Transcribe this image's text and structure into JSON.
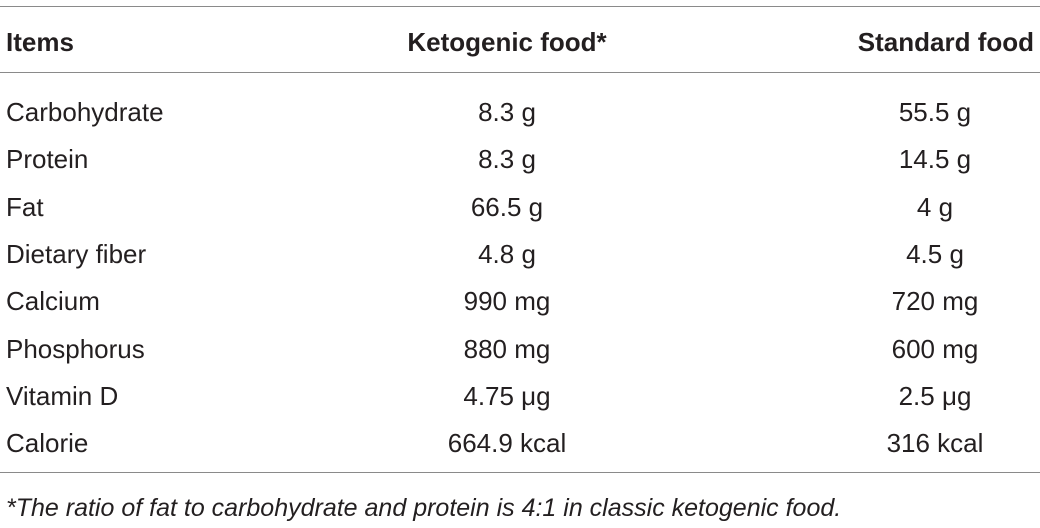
{
  "table": {
    "header": [
      "Items",
      "Ketogenic food*",
      "Standard food"
    ],
    "rows": [
      [
        "Carbohydrate",
        "8.3 g",
        "55.5 g"
      ],
      [
        "Protein",
        "8.3 g",
        "14.5 g"
      ],
      [
        "Fat",
        "66.5 g",
        "4 g"
      ],
      [
        "Dietary fiber",
        "4.8 g",
        "4.5 g"
      ],
      [
        "Calcium",
        "990 mg",
        "720 mg"
      ],
      [
        "Phosphorus",
        "880 mg",
        "600 mg"
      ],
      [
        "Vitamin D",
        "4.75 μg",
        "2.5 μg"
      ],
      [
        "Calorie",
        "664.9 kcal",
        "316 kcal"
      ]
    ],
    "footnote": "*The ratio of fat to carbohydrate and protein is 4:1 in classic ketogenic food."
  }
}
